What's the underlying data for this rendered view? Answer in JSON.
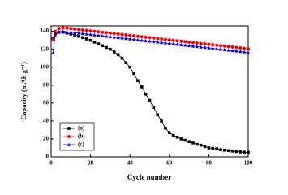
{
  "chart_data": {
    "type": "line",
    "xlabel": "Cycle number",
    "ylabel": "Capacity (mAh g⁻¹)",
    "x": [
      1,
      2,
      4,
      6,
      8,
      10,
      12,
      14,
      16,
      18,
      20,
      22,
      24,
      26,
      28,
      30,
      32,
      34,
      36,
      38,
      40,
      42,
      44,
      46,
      48,
      50,
      52,
      54,
      56,
      58,
      60,
      62,
      64,
      66,
      68,
      70,
      72,
      74,
      76,
      78,
      80,
      82,
      84,
      86,
      88,
      90,
      92,
      94,
      96,
      98,
      100
    ],
    "series": [
      {
        "name": "(a)",
        "color": "#000000",
        "marker": "square",
        "values": [
          132,
          137,
          139,
          139,
          138,
          137,
          136,
          134.5,
          133,
          131.5,
          130,
          128,
          126,
          124,
          122,
          120,
          117,
          114,
          110,
          105,
          100,
          93,
          85,
          78,
          70,
          63,
          55,
          47,
          40,
          32,
          27,
          24,
          22,
          20,
          18.5,
          17,
          15.5,
          14,
          13,
          11.5,
          10,
          9.5,
          9,
          8,
          7.5,
          7,
          6.5,
          6,
          5.5,
          5.2,
          5
        ]
      },
      {
        "name": "(b)",
        "color": "#ff0000",
        "marker": "circle",
        "values": [
          131,
          140,
          143,
          144,
          143.5,
          143,
          142.5,
          142,
          141.5,
          141,
          140.5,
          140,
          139.5,
          139,
          138.5,
          138,
          137.5,
          137,
          136.5,
          136,
          135.5,
          135,
          134.5,
          134,
          133.5,
          133,
          132.5,
          132,
          131.5,
          131,
          130.5,
          130,
          129.5,
          129,
          128.5,
          128,
          127.5,
          127,
          126.5,
          126,
          125.5,
          125,
          124.5,
          124,
          123.5,
          123,
          122.5,
          122,
          121.5,
          121,
          120.5
        ]
      },
      {
        "name": "(c)",
        "color": "#0000ff",
        "marker": "triangle",
        "values": [
          116,
          135,
          139,
          140,
          139.5,
          139,
          138.5,
          138,
          137.5,
          137,
          136.5,
          136,
          135.5,
          135,
          134.5,
          134,
          133.5,
          133,
          132.5,
          132,
          131.5,
          131,
          130.5,
          130,
          129.5,
          129,
          128.5,
          128,
          127.5,
          127,
          126.5,
          126,
          125.5,
          125,
          124.5,
          124,
          123.5,
          123,
          122.5,
          122,
          121.5,
          121,
          120.5,
          120,
          119.5,
          119,
          118.5,
          118,
          117.5,
          117,
          116.5
        ]
      }
    ],
    "xlim": [
      0,
      100
    ],
    "xticks": [
      0,
      20,
      40,
      60,
      80,
      100
    ],
    "ylim": [
      0,
      146
    ],
    "yticks": [
      0,
      20,
      40,
      60,
      80,
      100,
      120,
      140
    ],
    "legend": "lower left"
  }
}
